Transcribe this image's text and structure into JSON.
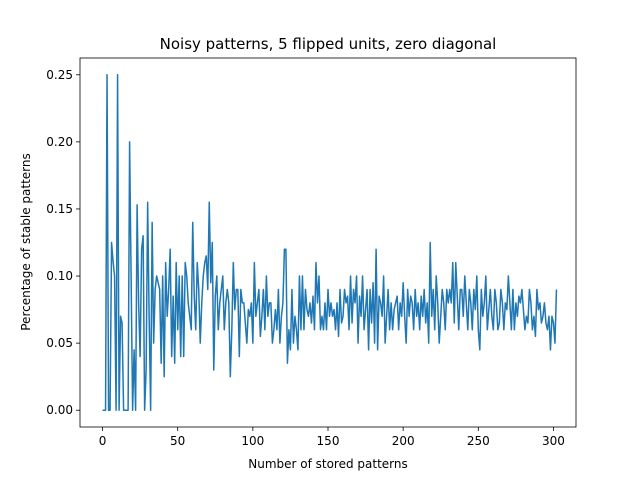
{
  "chart_data": {
    "type": "line",
    "title": "Noisy patterns, 5 flipped units, zero diagonal",
    "xlabel": "Number of stored patterns",
    "ylabel": "Percentage of stable patterns",
    "xlim": [
      -15,
      315
    ],
    "ylim": [
      -0.0125,
      0.2625
    ],
    "xticks": [
      0,
      50,
      100,
      150,
      200,
      250,
      300
    ],
    "xtick_labels": [
      "0",
      "50",
      "100",
      "150",
      "200",
      "250",
      "300"
    ],
    "yticks": [
      0.0,
      0.05,
      0.1,
      0.15,
      0.2,
      0.25
    ],
    "ytick_labels": [
      "0.00",
      "0.05",
      "0.10",
      "0.15",
      "0.20",
      "0.25"
    ],
    "grid": false,
    "legend": "none",
    "color": "#1f77b4",
    "series": [
      {
        "x_start": 0,
        "values": [
          0,
          0,
          0,
          0.25,
          0,
          0,
          0.125,
          0.111,
          0.1,
          0,
          0.25,
          0,
          0.07,
          0.065,
          0,
          0,
          0,
          0,
          0.2,
          0.1,
          0,
          0.045,
          0,
          0.153,
          0.08,
          0.04,
          0.12,
          0.13,
          0,
          0.03,
          0.155,
          0.07,
          0,
          0.14,
          0.05,
          0.09,
          0.1,
          0.095,
          0.09,
          0.035,
          0.1,
          0.025,
          0.11,
          0.07,
          0.09,
          0.12,
          0.04,
          0.085,
          0.035,
          0.11,
          0.06,
          0.1,
          0.04,
          0.1,
          0.04,
          0.11,
          0.1,
          0.08,
          0.07,
          0.06,
          0.14,
          0.085,
          0.06,
          0.11,
          0.09,
          0.05,
          0.08,
          0.1,
          0.11,
          0.115,
          0.09,
          0.155,
          0.095,
          0.125,
          0.03,
          0.085,
          0.1,
          0.06,
          0.08,
          0.09,
          0.1,
          0.06,
          0.08,
          0.09,
          0.08,
          0.025,
          0.06,
          0.11,
          0.075,
          0.09,
          0.09,
          0.04,
          0.09,
          0.08,
          0.08,
          0.065,
          0.05,
          0.075,
          0.07,
          0.08,
          0.05,
          0.11,
          0.07,
          0.08,
          0.09,
          0.055,
          0.07,
          0.09,
          0.06,
          0.1,
          0.07,
          0.08,
          0.08,
          0.05,
          0.06,
          0.075,
          0.06,
          0.09,
          0.05,
          0.07,
          0.08,
          0.12,
          0.12,
          0.035,
          0.06,
          0.045,
          0.09,
          0.05,
          0.07,
          0.06,
          0.045,
          0.1,
          0.06,
          0.1,
          0.06,
          0.09,
          0.075,
          0.07,
          0.08,
          0.065,
          0.085,
          0.06,
          0.11,
          0.08,
          0.1,
          0.06,
          0.07,
          0.06,
          0.08,
          0.06,
          0.09,
          0.07,
          0.08,
          0.07,
          0.075,
          0.06,
          0.08,
          0.055,
          0.09,
          0.065,
          0.07,
          0.09,
          0.08,
          0.085,
          0.06,
          0.1,
          0.065,
          0.09,
          0.08,
          0.1,
          0.05,
          0.085,
          0.07,
          0.1,
          0.06,
          0.075,
          0.09,
          0.045,
          0.09,
          0.065,
          0.095,
          0.05,
          0.12,
          0.045,
          0.085,
          0.08,
          0.07,
          0.1,
          0.05,
          0.07,
          0.09,
          0.06,
          0.08,
          0.06,
          0.075,
          0.08,
          0.085,
          0.06,
          0.08,
          0.07,
          0.095,
          0.07,
          0.05,
          0.09,
          0.07,
          0.085,
          0.08,
          0.06,
          0.09,
          0.07,
          0.08,
          0.06,
          0.085,
          0.07,
          0.09,
          0.065,
          0.08,
          0.05,
          0.125,
          0.07,
          0.09,
          0.06,
          0.1,
          0.08,
          0.05,
          0.07,
          0.09,
          0.08,
          0.06,
          0.09,
          0.08,
          0.09,
          0.08,
          0.11,
          0.065,
          0.11,
          0.085,
          0.06,
          0.09,
          0.09,
          0.07,
          0.1,
          0.08,
          0.06,
          0.09,
          0.08,
          0.06,
          0.09,
          0.075,
          0.1,
          0.06,
          0.045,
          0.09,
          0.07,
          0.08,
          0.1,
          0.06,
          0.075,
          0.09,
          0.07,
          0.06,
          0.09,
          0.08,
          0.06,
          0.065,
          0.09,
          0.08,
          0.06,
          0.08,
          0.075,
          0.1,
          0.08,
          0.06,
          0.09,
          0.06,
          0.08,
          0.07,
          0.085,
          0.08,
          0.09,
          0.075,
          0.06,
          0.07,
          0.065,
          0.09,
          0.08,
          0.06,
          0.07,
          0.055,
          0.09,
          0.075,
          0.08,
          0.065,
          0.07,
          0.08,
          0.065,
          0.06,
          0.07,
          0.045,
          0.07,
          0.065,
          0.05,
          0.09
        ]
      }
    ]
  }
}
